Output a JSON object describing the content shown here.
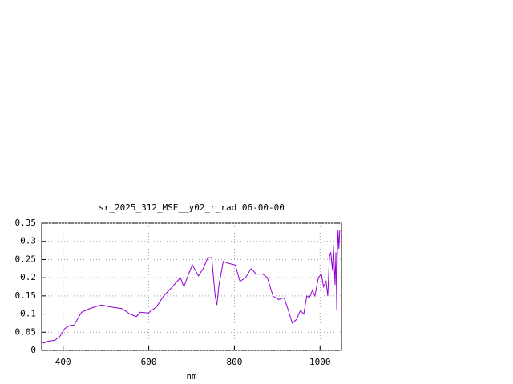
{
  "chart_data": {
    "type": "line",
    "title": "sr_2025_312_MSE__y02_r_rad 06-00-00",
    "xlabel": "nm",
    "xlim": [
      350,
      1050
    ],
    "xticks": [
      400,
      600,
      800,
      1000
    ],
    "ylim": [
      0,
      0.35
    ],
    "yticks": [
      0,
      0.05,
      0.1,
      0.15,
      0.2,
      0.25,
      0.3,
      0.35
    ],
    "grid": true,
    "series": [
      {
        "color": "#9400d3",
        "x": [
          350,
          355,
          364,
          381,
          392,
          404,
          415,
          426,
          443,
          462,
          475,
          490,
          509,
          537,
          556,
          571,
          580,
          599,
          618,
          635,
          659,
          674,
          682,
          693,
          702,
          716,
          727,
          738,
          747,
          755,
          759,
          764,
          774,
          785,
          802,
          813,
          826,
          839,
          851,
          866,
          877,
          890,
          903,
          916,
          926,
          935,
          945,
          954,
          962,
          969,
          975,
          982,
          988,
          996,
          1003,
          1008,
          1014,
          1018,
          1022,
          1025,
          1029,
          1031,
          1035,
          1037,
          1039,
          1040,
          1042,
          1044,
          1046
        ],
        "values": [
          0.025,
          0.02,
          0.025,
          0.028,
          0.038,
          0.06,
          0.068,
          0.07,
          0.105,
          0.115,
          0.12,
          0.125,
          0.12,
          0.115,
          0.1,
          0.093,
          0.105,
          0.103,
          0.12,
          0.15,
          0.18,
          0.2,
          0.175,
          0.21,
          0.235,
          0.205,
          0.225,
          0.255,
          0.255,
          0.15,
          0.125,
          0.18,
          0.245,
          0.24,
          0.235,
          0.19,
          0.2,
          0.225,
          0.21,
          0.21,
          0.2,
          0.15,
          0.14,
          0.145,
          0.11,
          0.075,
          0.085,
          0.11,
          0.1,
          0.15,
          0.145,
          0.165,
          0.15,
          0.2,
          0.21,
          0.175,
          0.19,
          0.15,
          0.26,
          0.27,
          0.22,
          0.29,
          0.18,
          0.27,
          0.11,
          0.25,
          0.33,
          0.28,
          0.33
        ]
      }
    ]
  }
}
